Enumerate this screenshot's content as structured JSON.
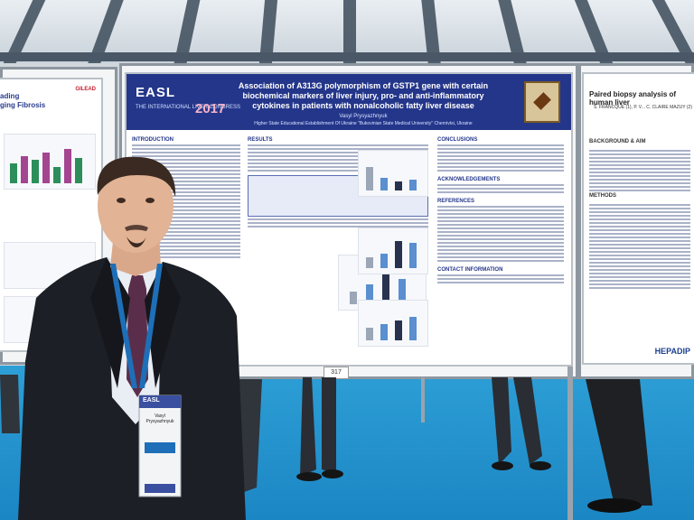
{
  "poster": {
    "brand": "EASL",
    "brand_sub": "THE INTERNATIONAL LIVER CONGRESS",
    "year": "2017",
    "title": "Association of A313G polymorphism of GSTP1 gene with certain biochemical markers of liver injury, pro- and anti-inflammatory cytokines in patients with nonalcoholic fatty liver disease",
    "author": "Vasyl Prysyazhnyuk",
    "institution": "Higher State Educational Establishment Of Ukraine \"Bukovinian State Medical University\"",
    "city": "Chernivtsi, Ukraine",
    "sections": {
      "introduction": "INTRODUCTION",
      "results": "RESULTS",
      "conclusions": "CONCLUSIONS",
      "acknowledgements": "ACKNOWLEDGEMENTS",
      "references": "REFERENCES",
      "contact": "CONTACT INFORMATION"
    },
    "number": "317"
  },
  "left_poster": {
    "title_line1": "ading",
    "title_line2": "ging Fibrosis",
    "logo": "GILEAD"
  },
  "right_poster": {
    "title": "Paired biopsy analysis of human liver",
    "authors": "S. FRANCQUE (1), P. V... C. CLAIRE MAZUY (2)",
    "background": "BACKGROUND & AIM",
    "methods": "METHODS",
    "footer_logo": "HEPADIP"
  },
  "badge": {
    "event": "EASL",
    "name": "Vasyl Prysyazhnyuk"
  },
  "colors": {
    "poster_header": "#24368a",
    "floor": "#2e9fd6",
    "lanyard": "#1e6fb8"
  }
}
